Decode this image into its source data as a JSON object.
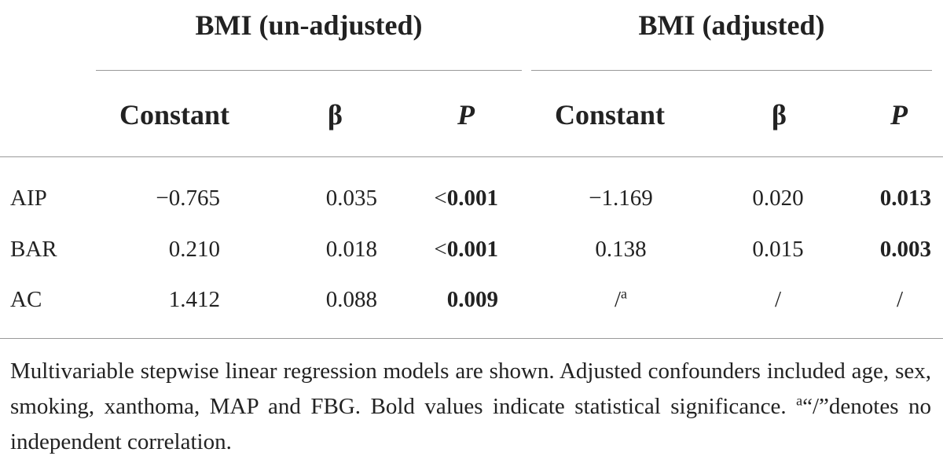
{
  "header": {
    "group1": "BMI (un-adjusted)",
    "group2": "BMI (adjusted)",
    "constant": "Constant",
    "beta": "β",
    "p": "P"
  },
  "rows": [
    {
      "label": "AIP",
      "u_const": "−0.765",
      "u_beta": "0.035",
      "u_p_prefix": "<",
      "u_p": "0.001",
      "a_const": "−1.169",
      "a_const_sup": "",
      "a_beta": "0.020",
      "a_p": "0.013"
    },
    {
      "label": "BAR",
      "u_const": "0.210",
      "u_beta": "0.018",
      "u_p_prefix": "<",
      "u_p": "0.001",
      "a_const": "0.138",
      "a_const_sup": "",
      "a_beta": "0.015",
      "a_p": "0.003"
    },
    {
      "label": "AC",
      "u_const": "1.412",
      "u_beta": "0.088",
      "u_p_prefix": "",
      "u_p": "0.009",
      "a_const": "/",
      "a_const_sup": "a",
      "a_beta": "/",
      "a_p": "/"
    }
  ],
  "footnote": {
    "text_main": "Multivariable stepwise linear regression models are shown. Adjusted confounders included age, sex, smoking, xanthoma, MAP and FBG. Bold values indicate statistical significance. ",
    "sup": "a",
    "text_end": "“/”denotes no independent correlation."
  }
}
